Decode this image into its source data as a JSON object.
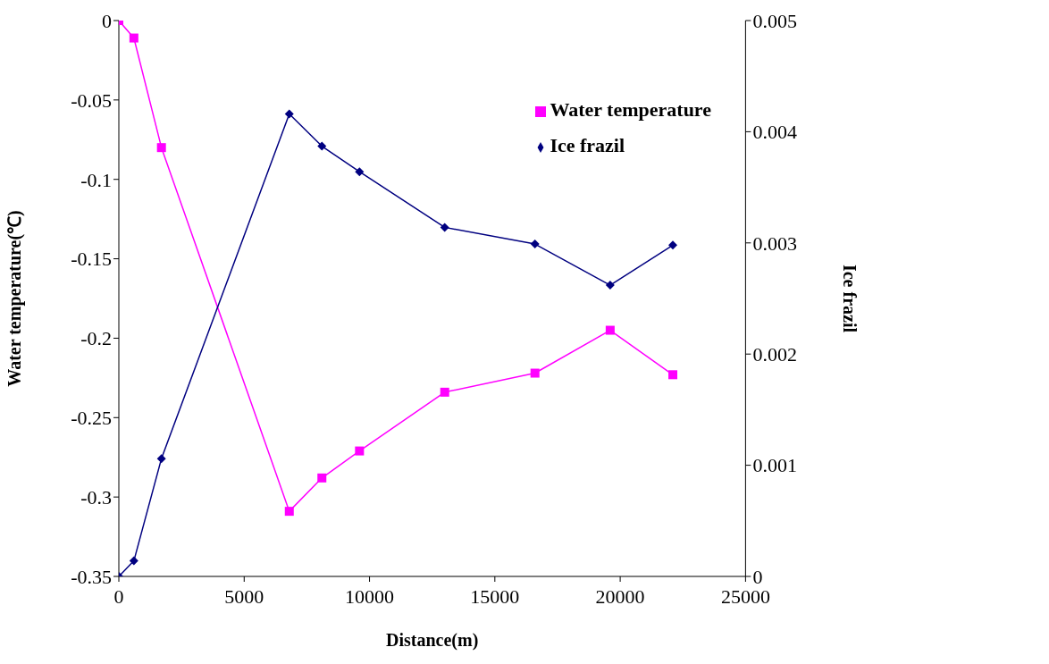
{
  "chart_data": {
    "type": "line",
    "xlabel": "Distance(m)",
    "ylabel": "Water temperature(℃)",
    "y2label": "Ice frazil",
    "x": [
      0,
      600,
      1700,
      6800,
      8100,
      9600,
      13000,
      16600,
      19600,
      22100
    ],
    "series": [
      {
        "name": "Water temperature",
        "color": "#ff00ff",
        "marker": "square",
        "values": [
          0,
          -0.011,
          -0.08,
          -0.309,
          -0.288,
          -0.271,
          -0.234,
          -0.222,
          -0.195,
          -0.223
        ]
      },
      {
        "name": "Ice frazil",
        "color": "#000080",
        "marker": "diamond",
        "axis": "y2",
        "values": [
          0,
          0.00014,
          0.00106,
          0.00416,
          0.00387,
          0.00364,
          0.00314,
          0.00299,
          0.00262,
          0.00298
        ]
      }
    ],
    "xlim": [
      0,
      25000
    ],
    "xticks": [
      0,
      5000,
      10000,
      15000,
      20000,
      25000
    ],
    "ylim": [
      -0.35,
      0
    ],
    "yticks": [
      -0.35,
      -0.3,
      -0.25,
      -0.2,
      -0.15,
      -0.1,
      -0.05,
      0
    ],
    "y2lim": [
      0,
      0.005
    ],
    "y2ticks": [
      0,
      0.001,
      0.002,
      0.003,
      0.004,
      0.005
    ],
    "grid": false,
    "legend": "top right",
    "line_style": "solid"
  }
}
